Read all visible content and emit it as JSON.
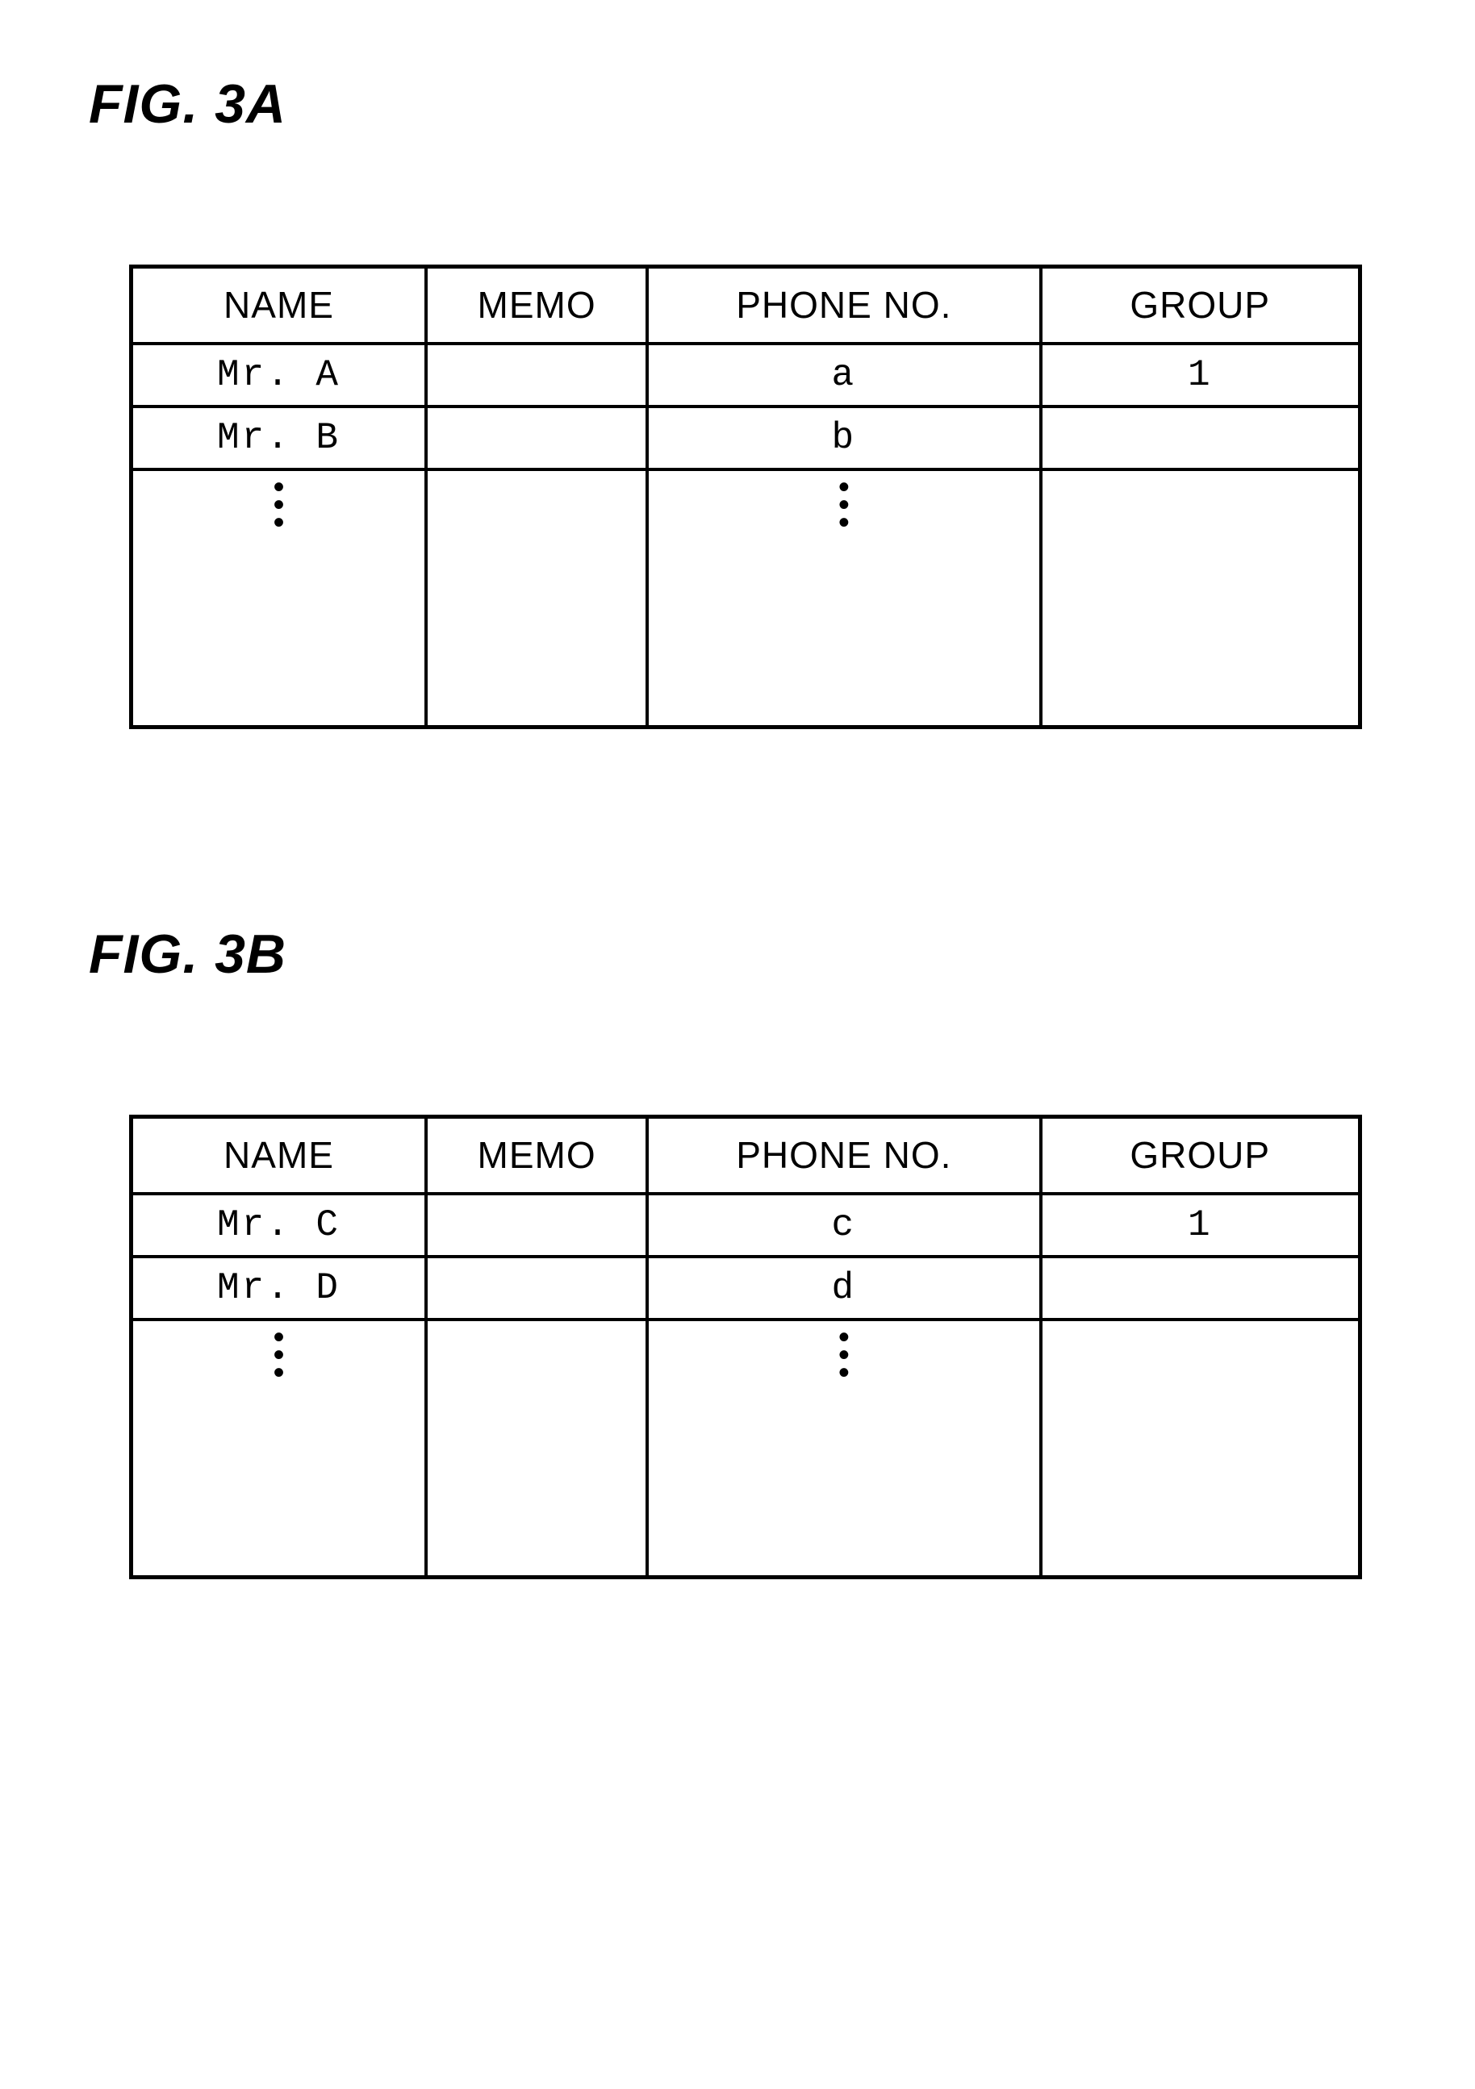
{
  "figures": {
    "a": {
      "label": "FIG. 3A",
      "table": {
        "type": "table",
        "border_color": "#000000",
        "border_width": 5,
        "background_color": "#ffffff",
        "header_fontsize": 46,
        "cell_fontsize": 46,
        "columns": [
          {
            "key": "name",
            "header": "NAME",
            "width_pct": 24
          },
          {
            "key": "memo",
            "header": "MEMO",
            "width_pct": 18
          },
          {
            "key": "phone",
            "header": "PHONE NO.",
            "width_pct": 32
          },
          {
            "key": "group",
            "header": "GROUP",
            "width_pct": 26
          }
        ],
        "rows": [
          {
            "name": "Mr. A",
            "memo": "",
            "phone": "a",
            "group": "1"
          },
          {
            "name": "Mr. B",
            "memo": "",
            "phone": "b",
            "group": ""
          }
        ],
        "ellipsis_row": {
          "name": true,
          "memo": false,
          "phone": true,
          "group": false
        }
      }
    },
    "b": {
      "label": "FIG. 3B",
      "table": {
        "type": "table",
        "border_color": "#000000",
        "border_width": 5,
        "background_color": "#ffffff",
        "header_fontsize": 46,
        "cell_fontsize": 46,
        "columns": [
          {
            "key": "name",
            "header": "NAME",
            "width_pct": 24
          },
          {
            "key": "memo",
            "header": "MEMO",
            "width_pct": 18
          },
          {
            "key": "phone",
            "header": "PHONE NO.",
            "width_pct": 32
          },
          {
            "key": "group",
            "header": "GROUP",
            "width_pct": 26
          }
        ],
        "rows": [
          {
            "name": "Mr. C",
            "memo": "",
            "phone": "c",
            "group": "1"
          },
          {
            "name": "Mr. D",
            "memo": "",
            "phone": "d",
            "group": ""
          }
        ],
        "ellipsis_row": {
          "name": true,
          "memo": false,
          "phone": true,
          "group": false
        }
      }
    }
  },
  "style": {
    "page_background": "#ffffff",
    "text_color": "#000000",
    "label_fontsize": 68,
    "label_fontweight": "bold",
    "label_style": "italic"
  }
}
